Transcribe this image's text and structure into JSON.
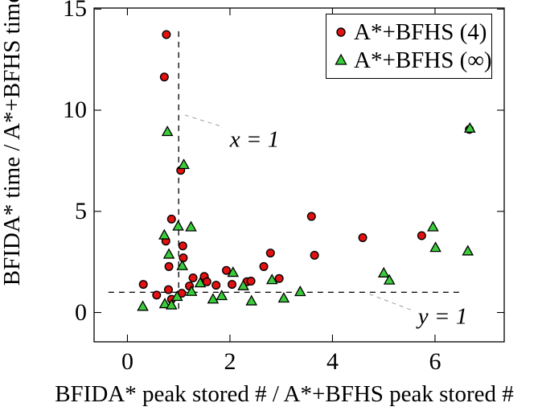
{
  "chart_data": {
    "type": "scatter",
    "title": "",
    "xlabel": "BFIDA* peak stored # / A*+BFHS peak stored #",
    "ylabel": "BFIDA* time / A*+BFHS time",
    "xlim": [
      -0.65,
      7.35
    ],
    "ylim": [
      -1.45,
      15.05
    ],
    "xticks": [
      0,
      2,
      4,
      6
    ],
    "yticks": [
      0,
      5,
      10,
      15
    ],
    "grid": false,
    "legend_position": "top-right",
    "reference_lines": [
      {
        "axis": "x",
        "value": 1,
        "style": "dashed",
        "span": [
          -0.05,
          13.9
        ]
      },
      {
        "axis": "y",
        "value": 1,
        "style": "dashed",
        "span": [
          -0.37,
          6.52
        ]
      }
    ],
    "annotations": [
      {
        "text": "x = 1",
        "center": [
          2.48,
          8.53
        ],
        "leader": [
          [
            1.12,
            9.76
          ],
          [
            1.87,
            9.17
          ]
        ]
      },
      {
        "text": "y = 1",
        "center": [
          6.15,
          -0.2
        ],
        "leader": [
          [
            4.72,
            0.91
          ],
          [
            5.54,
            0.12
          ]
        ]
      }
    ],
    "series": [
      {
        "name": "A*+BFHS (4)",
        "marker": "circle",
        "color": "#e41111",
        "points": [
          [
            0.76,
            13.74
          ],
          [
            0.72,
            11.64
          ],
          [
            1.04,
            7.03
          ],
          [
            0.86,
            4.62
          ],
          [
            0.75,
            3.53
          ],
          [
            1.08,
            3.29
          ],
          [
            1.09,
            2.7
          ],
          [
            0.81,
            2.27
          ],
          [
            0.31,
            1.39
          ],
          [
            0.57,
            0.86
          ],
          [
            0.8,
            1.13
          ],
          [
            0.86,
            0.65
          ],
          [
            1.06,
            0.95
          ],
          [
            1.21,
            1.31
          ],
          [
            1.28,
            1.71
          ],
          [
            1.5,
            1.78
          ],
          [
            1.55,
            1.52
          ],
          [
            1.73,
            1.35
          ],
          [
            1.93,
            2.08
          ],
          [
            2.04,
            1.39
          ],
          [
            2.33,
            1.52
          ],
          [
            2.41,
            1.55
          ],
          [
            2.66,
            2.27
          ],
          [
            2.79,
            2.94
          ],
          [
            2.96,
            1.68
          ],
          [
            3.59,
            4.75
          ],
          [
            3.65,
            2.83
          ],
          [
            4.59,
            3.7
          ],
          [
            5.74,
            3.8
          ],
          [
            6.67,
            9.05
          ]
        ]
      },
      {
        "name": "A*+BFHS (∞)",
        "marker": "triangle",
        "color": "#3bcc3b",
        "points": [
          [
            0.78,
            8.93
          ],
          [
            1.1,
            7.3
          ],
          [
            0.99,
            4.26
          ],
          [
            1.24,
            4.22
          ],
          [
            0.72,
            3.82
          ],
          [
            0.81,
            2.87
          ],
          [
            1.07,
            2.3
          ],
          [
            0.3,
            0.29
          ],
          [
            0.73,
            0.42
          ],
          [
            0.86,
            0.36
          ],
          [
            0.97,
            0.78
          ],
          [
            1.25,
            1.03
          ],
          [
            1.42,
            1.45
          ],
          [
            1.67,
            0.65
          ],
          [
            1.84,
            0.82
          ],
          [
            2.06,
            1.97
          ],
          [
            2.26,
            1.31
          ],
          [
            2.42,
            0.56
          ],
          [
            2.82,
            1.61
          ],
          [
            3.05,
            0.7
          ],
          [
            3.37,
            1.02
          ],
          [
            5.0,
            1.94
          ],
          [
            5.11,
            1.59
          ],
          [
            5.96,
            4.22
          ],
          [
            6.01,
            3.2
          ],
          [
            6.64,
            3.03
          ],
          [
            6.68,
            9.1
          ]
        ]
      }
    ]
  }
}
